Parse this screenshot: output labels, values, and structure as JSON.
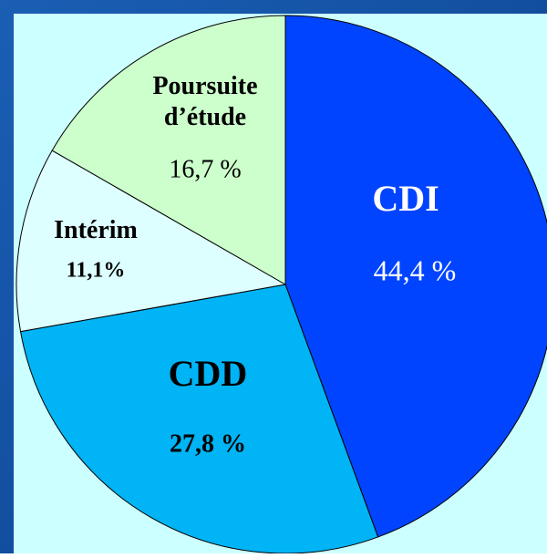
{
  "chart_data": {
    "type": "pie",
    "categories": [
      "CDI",
      "CDD",
      "Intérim",
      "Poursuite d’étude"
    ],
    "values": [
      44.4,
      27.8,
      11.1,
      16.7
    ],
    "value_labels": [
      "44,4 %",
      "27,8 %",
      "11,1%",
      "16,7 %"
    ],
    "colors": [
      "#0044ff",
      "#00b4f5",
      "#ddffff",
      "#ccffcc"
    ]
  }
}
